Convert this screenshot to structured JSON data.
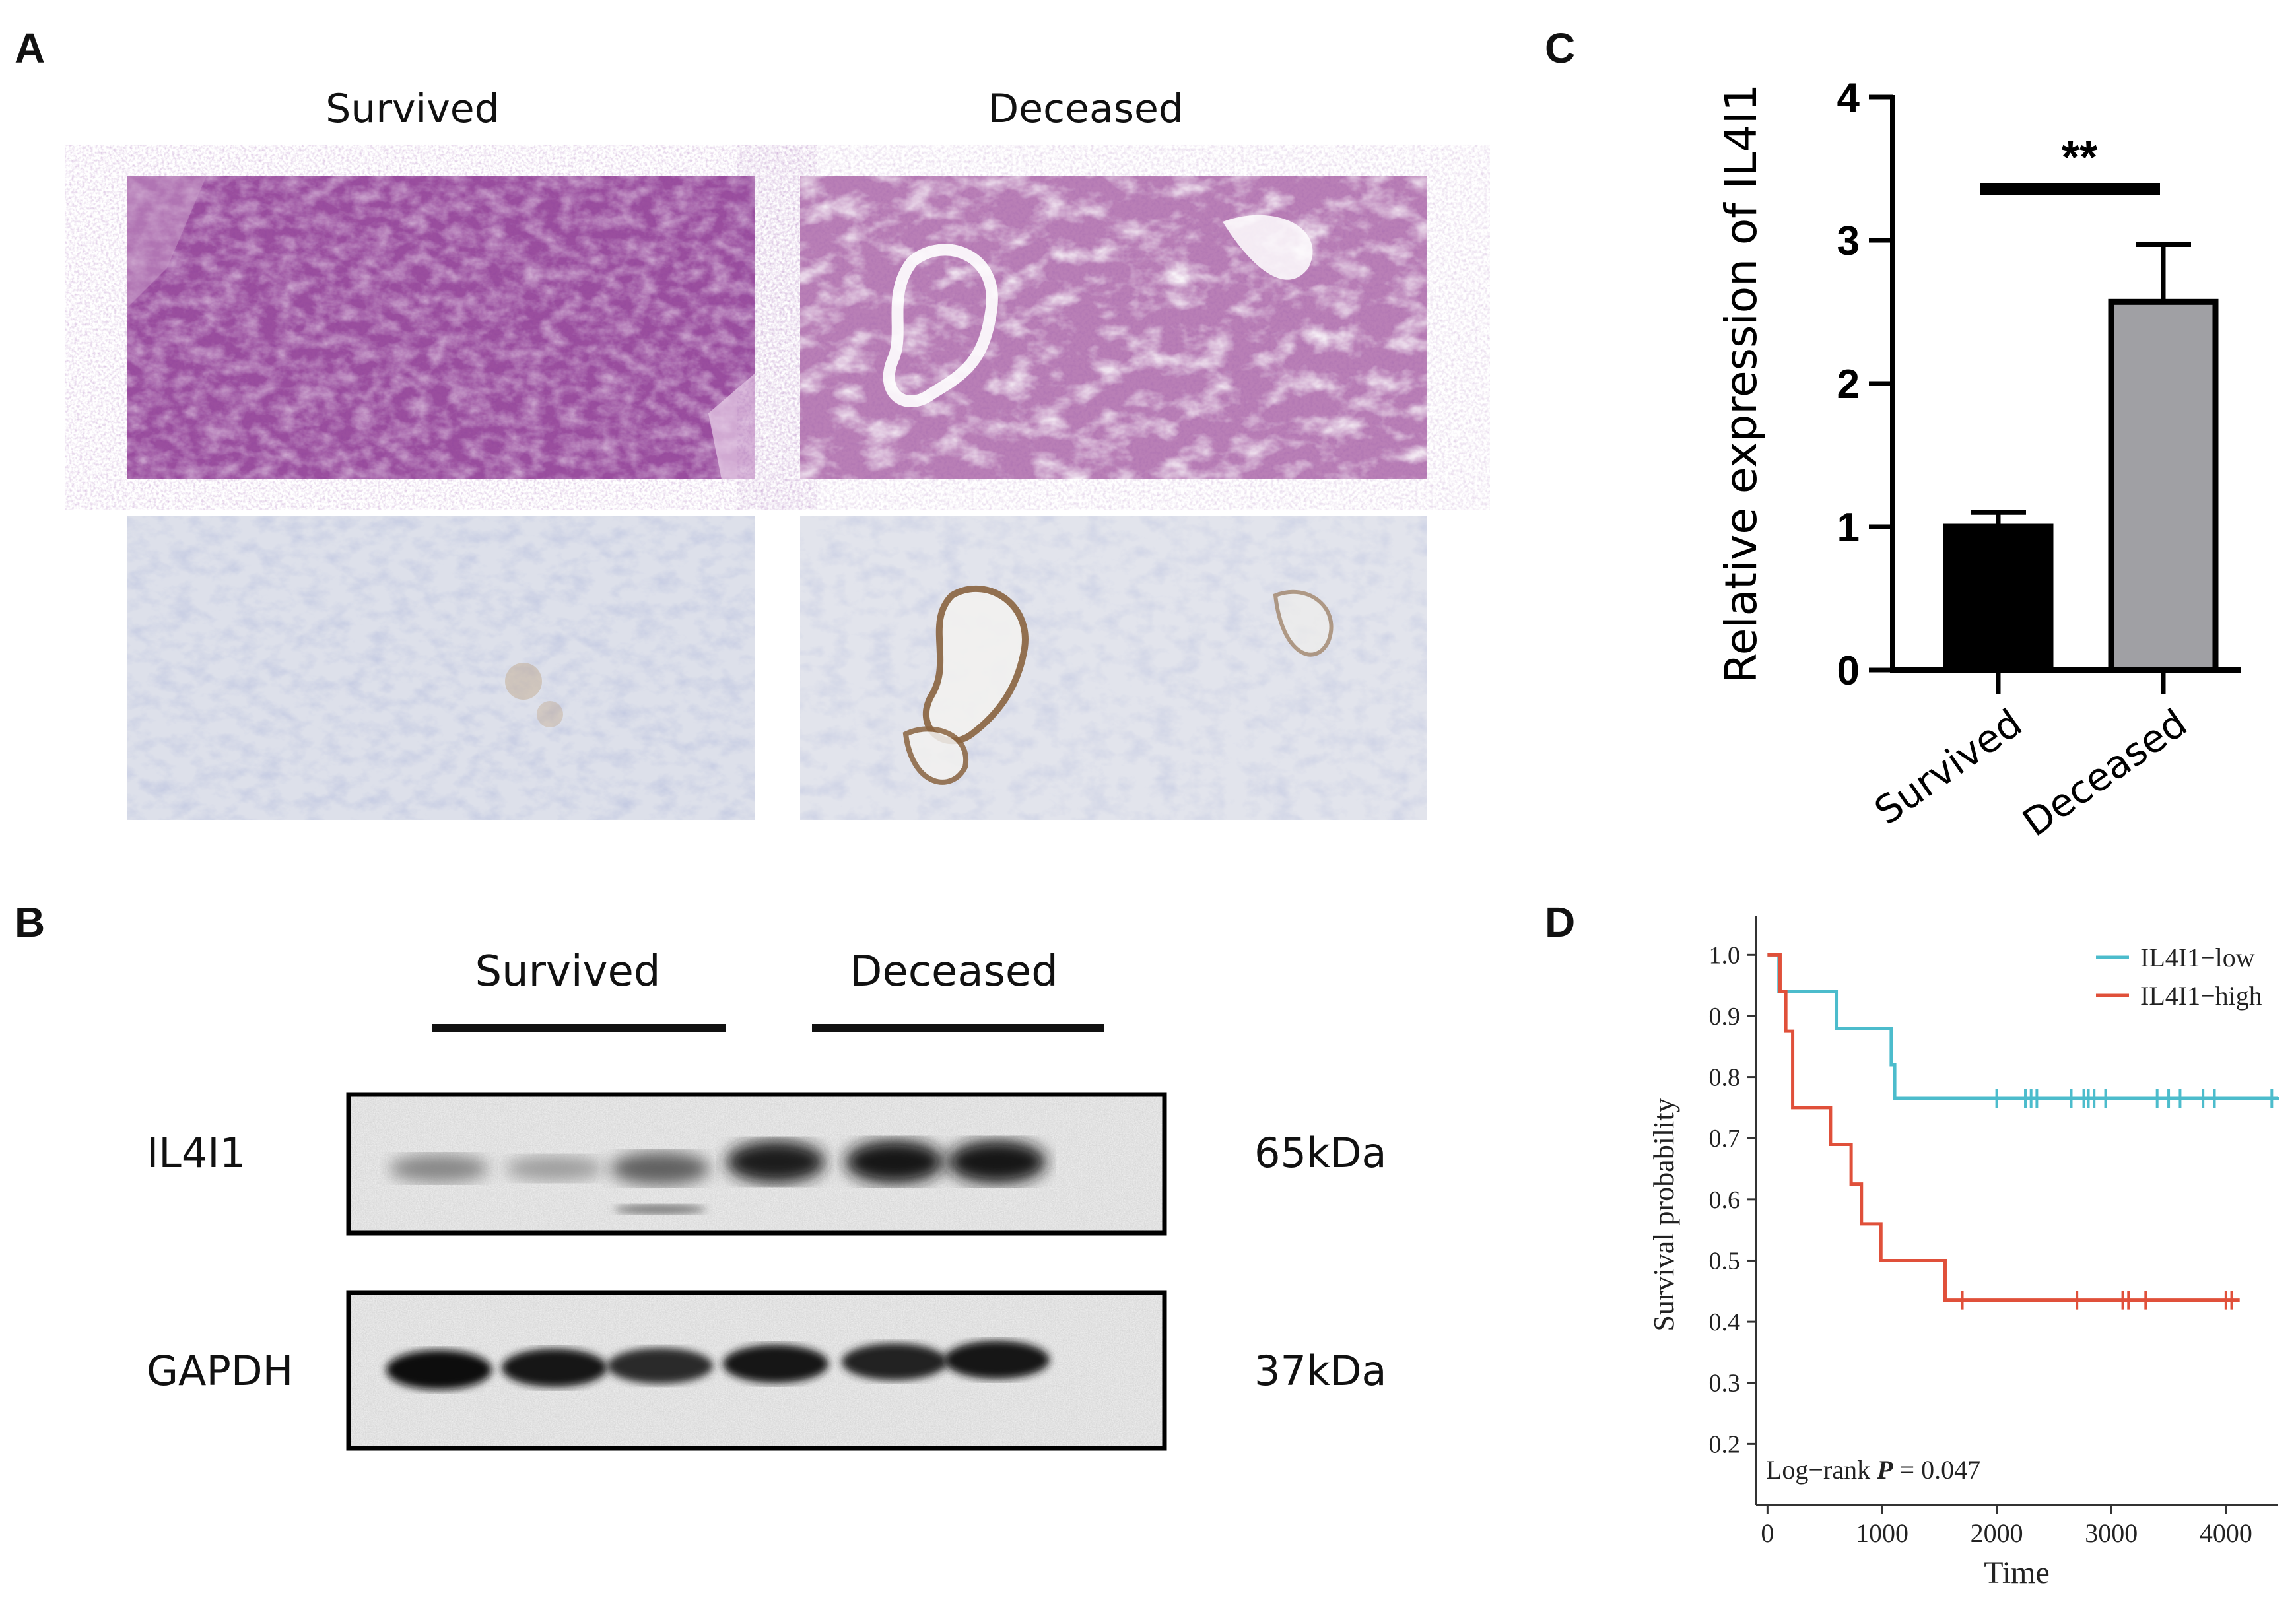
{
  "panels": {
    "A": {
      "letter": "A",
      "groups": [
        "Survived",
        "Deceased"
      ]
    },
    "B": {
      "letter": "B",
      "groups": [
        "Survived",
        "Deceased"
      ],
      "rows": [
        {
          "protein": "IL4I1",
          "size": "65kDa"
        },
        {
          "protein": "GAPDH",
          "size": "37kDa"
        }
      ],
      "band_intensity": {
        "IL4I1": [
          0.45,
          0.35,
          0.62,
          0.92,
          0.95,
          0.95
        ],
        "GAPDH": [
          1.0,
          0.95,
          0.85,
          0.95,
          0.9,
          0.95
        ]
      }
    },
    "C": {
      "letter": "C"
    },
    "D": {
      "letter": "D"
    }
  },
  "chart_data": [
    {
      "id": "C",
      "type": "bar",
      "categories": [
        "Survived",
        "Deceased"
      ],
      "values": [
        1.0,
        2.57
      ],
      "errors": [
        0.1,
        0.4
      ],
      "bar_colors": [
        "#000000",
        "#a0a0a4"
      ],
      "ylabel": "Relative expression of IL4I1",
      "ylim": [
        0,
        4
      ],
      "yticks": [
        0,
        1,
        2,
        3,
        4
      ],
      "significance": "**"
    },
    {
      "id": "D",
      "type": "line",
      "xlabel": "Time",
      "ylabel": "Survival probability",
      "xlim": [
        -100,
        4450
      ],
      "ylim": [
        0.1,
        1.05
      ],
      "xticks": [
        0,
        1000,
        2000,
        3000,
        4000
      ],
      "yticks": [
        0.2,
        0.3,
        0.4,
        0.5,
        0.6,
        0.7,
        0.8,
        0.9,
        1.0
      ],
      "annotation": {
        "prefix": "Log−rank ",
        "italic": "P",
        "suffix": " = 0.047"
      },
      "series": [
        {
          "name": "IL4I1−low",
          "color": "#4cbccc",
          "steps": [
            [
              0,
              1.0
            ],
            [
              100,
              1.0
            ],
            [
              100,
              0.94
            ],
            [
              600,
              0.94
            ],
            [
              600,
              0.88
            ],
            [
              1080,
              0.88
            ],
            [
              1080,
              0.82
            ],
            [
              1110,
              0.82
            ],
            [
              1110,
              0.765
            ],
            [
              4450,
              0.765
            ]
          ],
          "censor_x": [
            2000,
            2250,
            2300,
            2350,
            2650,
            2760,
            2800,
            2850,
            2950,
            3400,
            3500,
            3600,
            3800,
            3900,
            4400
          ]
        },
        {
          "name": "IL4I1−high",
          "color": "#e0503a",
          "steps": [
            [
              0,
              1.0
            ],
            [
              110,
              1.0
            ],
            [
              110,
              0.94
            ],
            [
              160,
              0.94
            ],
            [
              160,
              0.875
            ],
            [
              220,
              0.875
            ],
            [
              220,
              0.75
            ],
            [
              550,
              0.75
            ],
            [
              550,
              0.69
            ],
            [
              730,
              0.69
            ],
            [
              730,
              0.625
            ],
            [
              820,
              0.625
            ],
            [
              820,
              0.56
            ],
            [
              990,
              0.56
            ],
            [
              990,
              0.5
            ],
            [
              1550,
              0.5
            ],
            [
              1550,
              0.435
            ],
            [
              4120,
              0.435
            ]
          ],
          "censor_x": [
            1700,
            2700,
            3100,
            3150,
            3300,
            4000,
            4050
          ]
        }
      ]
    }
  ]
}
